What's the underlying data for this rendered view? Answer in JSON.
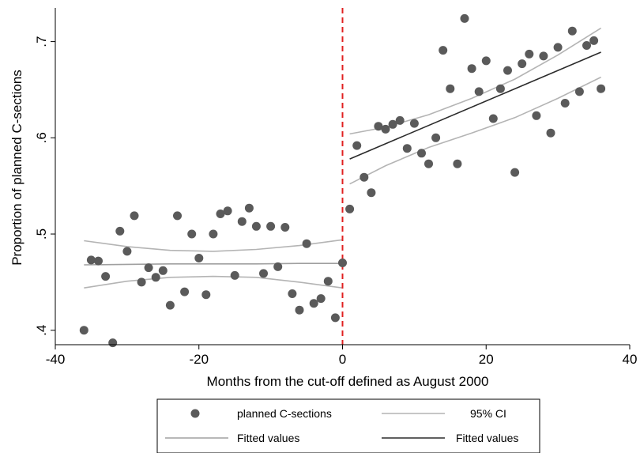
{
  "chart_data": {
    "type": "scatter",
    "title": "",
    "xlabel": "Months from the cut-off defined as August 2000",
    "ylabel": "Proportion of planned C-sections",
    "xlim": [
      -40,
      40
    ],
    "ylim": [
      0.385,
      0.735
    ],
    "x_ticks": [
      -40,
      -20,
      0,
      20,
      40
    ],
    "x_tick_labels": [
      "-40",
      "-20",
      "0",
      "20",
      "40"
    ],
    "y_ticks": [
      0.4,
      0.5,
      0.6,
      0.7
    ],
    "y_tick_labels": [
      ".4",
      ".5",
      ".6",
      ".7"
    ],
    "grid": false,
    "cutoff_x": 0,
    "colors": {
      "markers": "#5a5a5a",
      "ci": "#b4b4b4",
      "fit_pre": "#a0a0a0",
      "fit_post": "#2b2b2b",
      "cutoff": "#e02020"
    },
    "legend": {
      "position": "bottom",
      "items": [
        {
          "label": "planned C-sections",
          "kind": "marker"
        },
        {
          "label": "95% CI",
          "kind": "ci-line"
        },
        {
          "label": "Fitted values",
          "kind": "fit-pre-line"
        },
        {
          "label": "Fitted values",
          "kind": "fit-post-line"
        }
      ]
    },
    "series": [
      {
        "name": "planned C-sections",
        "kind": "scatter",
        "x": [
          -36,
          -35,
          -34,
          -33,
          -32,
          -31,
          -30,
          -29,
          -28,
          -27,
          -26,
          -25,
          -24,
          -23,
          -22,
          -21,
          -20,
          -19,
          -18,
          -17,
          -16,
          -15,
          -14,
          -13,
          -12,
          -11,
          -10,
          -9,
          -8,
          -7,
          -6,
          -5,
          -4,
          -3,
          -2,
          -1,
          0,
          1,
          2,
          3,
          4,
          5,
          6,
          7,
          8,
          9,
          10,
          11,
          12,
          13,
          14,
          15,
          16,
          17,
          18,
          19,
          20,
          21,
          22,
          23,
          24,
          25,
          26,
          27,
          28,
          29,
          30,
          31,
          32,
          33,
          34,
          35,
          36
        ],
        "y": [
          0.4,
          0.473,
          0.472,
          0.456,
          0.387,
          0.503,
          0.482,
          0.519,
          0.45,
          0.465,
          0.455,
          0.462,
          0.426,
          0.519,
          0.44,
          0.5,
          0.475,
          0.437,
          0.5,
          0.521,
          0.524,
          0.457,
          0.513,
          0.527,
          0.508,
          0.459,
          0.508,
          0.466,
          0.507,
          0.438,
          0.421,
          0.49,
          0.428,
          0.433,
          0.451,
          0.413,
          0.47,
          0.526,
          0.592,
          0.559,
          0.543,
          0.612,
          0.609,
          0.614,
          0.618,
          0.589,
          0.615,
          0.584,
          0.573,
          0.6,
          0.691,
          0.651,
          0.573,
          0.724,
          0.672,
          0.648,
          0.68,
          0.62,
          0.651,
          0.67,
          0.564,
          0.677,
          0.687,
          0.623,
          0.685,
          0.605,
          0.694,
          0.636,
          0.711,
          0.648,
          0.696,
          0.701,
          0.651
        ]
      },
      {
        "name": "Fitted values",
        "kind": "line",
        "segment": "pre",
        "x": [
          -36,
          -30,
          -24,
          -18,
          -12,
          -6,
          0
        ],
        "y": [
          0.468,
          0.4685,
          0.469,
          0.469,
          0.469,
          0.4695,
          0.4695
        ]
      },
      {
        "name": "95% CI",
        "kind": "band-line",
        "segment": "pre",
        "x": [
          -36,
          -30,
          -24,
          -18,
          -12,
          -6,
          0
        ],
        "lower": [
          0.444,
          0.451,
          0.455,
          0.456,
          0.455,
          0.45,
          0.444
        ],
        "upper": [
          0.493,
          0.487,
          0.483,
          0.482,
          0.484,
          0.488,
          0.494
        ]
      },
      {
        "name": "Fitted values",
        "kind": "line",
        "segment": "post",
        "x": [
          1,
          36
        ],
        "y": [
          0.578,
          0.689
        ]
      },
      {
        "name": "95% CI",
        "kind": "band-line",
        "segment": "post",
        "x": [
          1,
          6,
          12,
          18,
          24,
          30,
          36
        ],
        "lower": [
          0.552,
          0.571,
          0.59,
          0.605,
          0.621,
          0.641,
          0.663
        ],
        "upper": [
          0.604,
          0.611,
          0.624,
          0.641,
          0.661,
          0.686,
          0.714
        ]
      }
    ]
  }
}
